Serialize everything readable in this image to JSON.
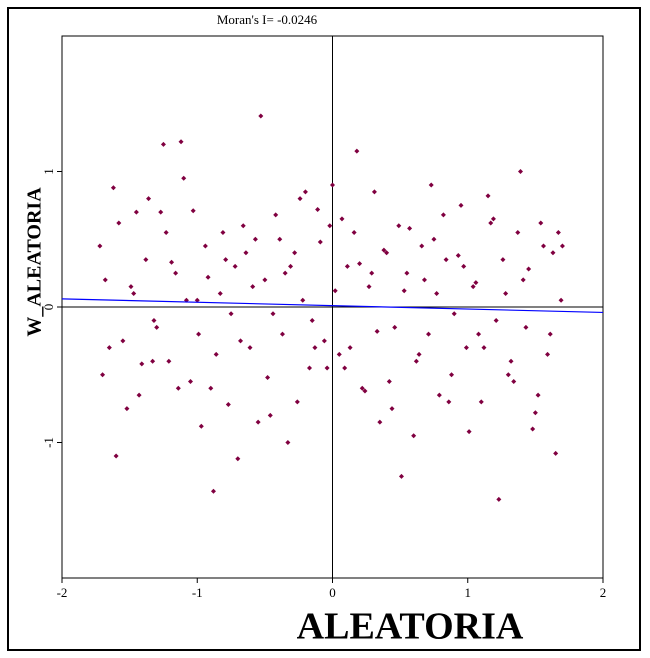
{
  "chart_data": {
    "type": "scatter",
    "title": "Moran's I= -0.0246",
    "x_label": "ALEATORIA",
    "y_label": "W_ALEATORIA",
    "xlim": [
      -2,
      2
    ],
    "ylim": [
      -2,
      2
    ],
    "xticks": [
      -2,
      -1,
      0,
      1,
      2
    ],
    "yticks": [
      -1,
      0,
      1
    ],
    "color": "#800040",
    "title_color": "#0000ff",
    "reference_lines": {
      "x": 0,
      "y": 0
    },
    "fit_line": {
      "color": "#0000ff",
      "x": [
        -2,
        2
      ],
      "y": [
        0.06,
        -0.04
      ]
    },
    "x": [
      -1.72,
      -1.65,
      -1.58,
      -1.52,
      -1.47,
      -1.41,
      -1.36,
      -1.3,
      -1.25,
      -1.19,
      -1.14,
      -1.08,
      -1.03,
      -0.97,
      -0.92,
      -0.86,
      -0.81,
      -0.75,
      -0.7,
      -0.64,
      -0.59,
      -0.53,
      -0.48,
      -0.42,
      -0.37,
      -0.31,
      -0.26,
      -0.2,
      -0.15,
      -0.09,
      -0.04,
      0.02,
      0.07,
      0.13,
      0.18,
      0.24,
      0.29,
      0.35,
      0.4,
      0.46,
      0.51,
      0.57,
      0.62,
      0.68,
      0.73,
      0.79,
      0.84,
      0.9,
      0.95,
      1.01,
      1.06,
      1.12,
      1.17,
      1.23,
      1.28,
      1.34,
      1.39,
      1.45,
      1.5,
      1.56,
      1.61,
      1.67,
      -1.7,
      -1.62,
      -1.55,
      -1.49,
      -1.43,
      -1.38,
      -1.32,
      -1.27,
      -1.21,
      -1.16,
      -1.1,
      -1.05,
      -0.99,
      -0.94,
      -0.88,
      -0.83,
      -0.77,
      -0.72,
      -0.66,
      -0.61,
      -0.55,
      -0.5,
      -0.44,
      -0.39,
      -0.33,
      -0.28,
      -0.22,
      -0.17,
      -0.11,
      -0.06,
      0.0,
      0.05,
      0.11,
      0.16,
      0.22,
      0.27,
      0.33,
      0.38,
      0.44,
      0.49,
      0.55,
      0.6,
      0.66,
      0.71,
      0.77,
      0.82,
      0.88,
      0.93,
      0.99,
      1.04,
      1.1,
      1.15,
      1.21,
      1.26,
      1.32,
      1.37,
      1.43,
      1.48,
      1.54,
      1.59,
      1.65,
      1.69,
      -1.68,
      -1.6,
      -1.45,
      -1.33,
      -1.23,
      -1.12,
      -1.0,
      -0.9,
      -0.79,
      -0.68,
      -0.57,
      -0.46,
      -0.35,
      -0.24,
      -0.13,
      -0.02,
      0.09,
      0.2,
      0.31,
      0.42,
      0.53,
      0.64,
      0.75,
      0.86,
      0.97,
      1.08,
      1.19,
      1.3,
      1.41,
      1.52,
      1.63,
      1.7
    ],
    "y": [
      0.45,
      -0.3,
      0.62,
      -0.75,
      0.1,
      -0.42,
      0.8,
      -0.15,
      1.2,
      0.33,
      -0.6,
      0.05,
      0.71,
      -0.88,
      0.22,
      -0.35,
      0.55,
      -0.05,
      -1.12,
      0.4,
      0.15,
      1.41,
      -0.52,
      0.68,
      -0.2,
      0.3,
      -0.7,
      0.85,
      -0.1,
      0.48,
      -0.45,
      0.12,
      0.65,
      -0.3,
      1.15,
      -0.62,
      0.25,
      -0.85,
      0.4,
      -0.15,
      -1.25,
      0.58,
      -0.4,
      0.2,
      0.9,
      -0.65,
      0.35,
      -0.05,
      0.75,
      -0.92,
      0.18,
      -0.3,
      0.62,
      -1.42,
      0.1,
      -0.55,
      1.0,
      0.28,
      -0.78,
      0.45,
      -0.2,
      0.55,
      -0.5,
      0.88,
      -0.25,
      0.15,
      -0.65,
      0.35,
      -0.1,
      0.7,
      -0.4,
      0.25,
      0.95,
      -0.55,
      -0.2,
      0.45,
      -1.36,
      0.1,
      -0.72,
      0.3,
      0.6,
      -0.3,
      -0.85,
      0.2,
      -0.05,
      0.5,
      -1.0,
      0.4,
      0.05,
      -0.45,
      0.72,
      -0.25,
      0.9,
      -0.35,
      0.3,
      0.55,
      -0.6,
      0.15,
      -0.18,
      0.42,
      -0.75,
      0.6,
      0.25,
      -0.95,
      0.45,
      -0.2,
      0.1,
      0.68,
      -0.5,
      0.38,
      -0.3,
      0.15,
      -0.7,
      0.82,
      -0.1,
      0.35,
      -0.4,
      0.55,
      -0.15,
      -0.9,
      0.62,
      -0.35,
      -1.08,
      0.05,
      0.2,
      -1.1,
      0.7,
      -0.4,
      0.55,
      1.22,
      0.05,
      -0.6,
      0.35,
      -0.25,
      0.5,
      -0.8,
      0.25,
      0.8,
      -0.3,
      0.6,
      -0.45,
      0.32,
      0.85,
      -0.55,
      0.12,
      -0.35,
      0.5,
      -0.7,
      0.3,
      -0.2,
      0.65,
      -0.5,
      0.2,
      -0.65,
      0.4,
      0.45
    ]
  }
}
